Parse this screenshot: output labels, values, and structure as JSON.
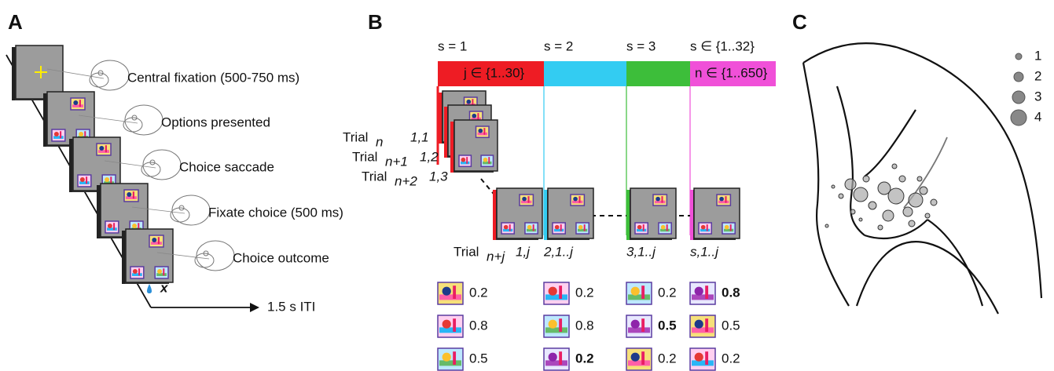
{
  "panel_a": {
    "label": "A",
    "steps": [
      "Central fixation (500-750 ms)",
      "Options presented",
      "Choice saccade",
      "Fixate choice (500 ms)",
      "Choice outcome"
    ],
    "outcome_mark": "x",
    "iti": "1.5 s ITI"
  },
  "panel_b": {
    "label": "B",
    "sessions": [
      "s = 1",
      "s = 2",
      "s = 3",
      "s ∈ {1..32}"
    ],
    "bar_colors": [
      "#ee1c24",
      "#33ccf2",
      "#3dbe3a",
      "#f050d8"
    ],
    "bar_labels": {
      "first": "j ∈ {1..30}",
      "last": "n ∈ {1..650}"
    },
    "trials": [
      {
        "word": "Trial",
        "sub": "n",
        "index": "1,1"
      },
      {
        "word": "Trial",
        "sub": "n+1",
        "index": "1,2"
      },
      {
        "word": "Trial",
        "sub": "n+2",
        "index": "1,3"
      }
    ],
    "bottom": {
      "trial": {
        "word": "Trial",
        "sub": "n+j",
        "index": "1,j"
      },
      "indices": [
        "2,1..j",
        "3,1..j",
        "s,1..j"
      ]
    },
    "values": [
      [
        0.2,
        0.2,
        0.2,
        0.8
      ],
      [
        0.8,
        0.8,
        0.5,
        0.5
      ],
      [
        0.5,
        0.2,
        0.2,
        0.2
      ]
    ],
    "bold": [
      [
        false,
        false,
        false,
        true
      ],
      [
        false,
        false,
        true,
        false
      ],
      [
        false,
        true,
        false,
        false
      ]
    ]
  },
  "panel_c": {
    "label": "C",
    "legend": [
      1,
      2,
      3,
      4
    ]
  }
}
